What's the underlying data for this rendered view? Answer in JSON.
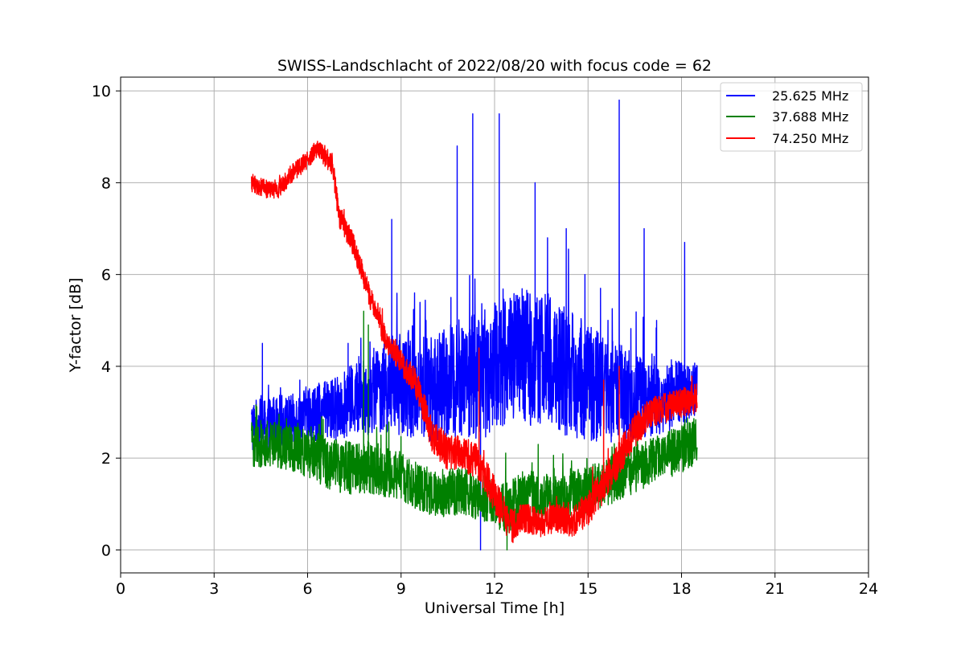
{
  "chart_data": {
    "type": "line",
    "title": "SWISS-Landschlacht of 2022/08/20 with focus code = 62",
    "xlabel": "Universal Time [h]",
    "ylabel": "Y-factor [dB]",
    "xlim": [
      0,
      24
    ],
    "ylim": [
      -0.5,
      10.3
    ],
    "xticks": [
      0,
      3,
      6,
      9,
      12,
      15,
      18,
      21,
      24
    ],
    "xtick_labels": [
      "0",
      "3",
      "6",
      "9",
      "12",
      "15",
      "18",
      "21",
      "24"
    ],
    "yticks": [
      0,
      2,
      4,
      6,
      8,
      10
    ],
    "ytick_labels": [
      "0",
      "2",
      "4",
      "6",
      "8",
      "10"
    ],
    "grid": true,
    "legend_position": "top-right",
    "series": [
      {
        "name": "25.625 MHz",
        "color": "#0000ff",
        "x": [
          4.2,
          4.5,
          5.0,
          5.5,
          6.0,
          6.5,
          7.0,
          7.5,
          8.0,
          8.5,
          9.0,
          9.5,
          10.0,
          10.5,
          11.0,
          11.5,
          12.0,
          12.5,
          13.0,
          13.5,
          14.0,
          14.5,
          15.0,
          15.5,
          16.0,
          16.5,
          17.0,
          17.5,
          18.0,
          18.5
        ],
        "center": [
          2.7,
          2.7,
          2.8,
          2.8,
          3.0,
          3.0,
          3.1,
          3.3,
          3.4,
          3.6,
          3.6,
          3.6,
          3.5,
          3.6,
          3.8,
          3.8,
          4.0,
          4.2,
          4.2,
          4.2,
          4.0,
          3.8,
          3.7,
          3.5,
          3.4,
          3.3,
          3.3,
          3.3,
          3.4,
          3.5
        ],
        "noise": [
          0.45,
          0.45,
          0.45,
          0.45,
          0.45,
          0.5,
          0.55,
          0.6,
          0.7,
          0.8,
          0.85,
          0.9,
          0.9,
          1.0,
          1.0,
          1.1,
          1.1,
          1.15,
          1.15,
          1.15,
          1.1,
          1.05,
          1.0,
          0.9,
          0.85,
          0.75,
          0.65,
          0.6,
          0.55,
          0.5
        ],
        "peaks": [
          [
            4.55,
            4.5
          ],
          [
            5.75,
            3.7
          ],
          [
            6.3,
            1.8
          ],
          [
            7.3,
            4.5
          ],
          [
            8.7,
            7.2
          ],
          [
            9.8,
            5.0
          ],
          [
            10.6,
            5.5
          ],
          [
            10.8,
            8.8
          ],
          [
            11.3,
            9.5
          ],
          [
            11.55,
            0.0
          ],
          [
            12.15,
            9.5
          ],
          [
            13.3,
            8.0
          ],
          [
            13.7,
            6.8
          ],
          [
            14.3,
            7.0
          ],
          [
            14.9,
            6.0
          ],
          [
            15.4,
            5.7
          ],
          [
            16.0,
            9.8
          ],
          [
            16.8,
            7.0
          ],
          [
            17.2,
            5.0
          ],
          [
            18.1,
            6.7
          ]
        ]
      },
      {
        "name": "37.688 MHz",
        "color": "#008000",
        "x": [
          4.2,
          5.0,
          6.0,
          7.0,
          8.0,
          9.0,
          10.0,
          11.0,
          12.0,
          12.5,
          13.0,
          14.0,
          15.0,
          16.0,
          17.0,
          18.0,
          18.5
        ],
        "center": [
          2.3,
          2.3,
          2.1,
          1.8,
          1.8,
          1.6,
          1.2,
          1.3,
          1.0,
          0.9,
          1.2,
          1.1,
          1.3,
          1.6,
          1.9,
          2.2,
          2.4
        ],
        "noise": [
          0.4,
          0.4,
          0.4,
          0.45,
          0.45,
          0.4,
          0.4,
          0.4,
          0.4,
          0.45,
          0.45,
          0.4,
          0.4,
          0.4,
          0.4,
          0.4,
          0.4
        ],
        "peaks": [
          [
            7.8,
            5.2
          ],
          [
            7.95,
            4.9
          ],
          [
            12.4,
            0.0
          ],
          [
            13.4,
            2.3
          ]
        ]
      },
      {
        "name": "74.250 MHz",
        "color": "#ff0000",
        "x": [
          4.2,
          4.5,
          5.0,
          5.5,
          6.0,
          6.3,
          6.8,
          7.0,
          7.5,
          8.0,
          8.5,
          9.0,
          9.5,
          10.0,
          10.5,
          11.0,
          11.5,
          12.0,
          12.5,
          13.0,
          13.5,
          14.0,
          14.5,
          15.0,
          15.5,
          16.0,
          16.5,
          17.0,
          17.5,
          18.0,
          18.5
        ],
        "center": [
          8.0,
          7.9,
          7.8,
          8.2,
          8.5,
          8.75,
          8.4,
          7.3,
          6.6,
          5.5,
          4.6,
          4.1,
          3.6,
          2.5,
          2.1,
          2.1,
          1.9,
          1.2,
          0.5,
          0.7,
          0.6,
          0.7,
          0.6,
          0.9,
          1.4,
          2.0,
          2.6,
          3.0,
          3.1,
          3.2,
          3.3
        ],
        "noise": [
          0.15,
          0.15,
          0.15,
          0.15,
          0.15,
          0.15,
          0.18,
          0.2,
          0.2,
          0.2,
          0.2,
          0.2,
          0.25,
          0.3,
          0.3,
          0.3,
          0.3,
          0.3,
          0.3,
          0.25,
          0.25,
          0.25,
          0.25,
          0.3,
          0.3,
          0.3,
          0.3,
          0.25,
          0.25,
          0.25,
          0.25
        ],
        "peaks": [
          [
            11.5,
            4.4
          ],
          [
            15.5,
            3.7
          ],
          [
            16.0,
            4.0
          ]
        ]
      }
    ]
  }
}
